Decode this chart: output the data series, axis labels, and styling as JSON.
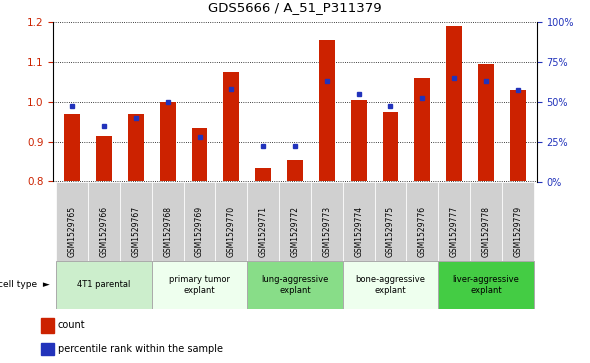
{
  "title": "GDS5666 / A_51_P311379",
  "samples": [
    "GSM1529765",
    "GSM1529766",
    "GSM1529767",
    "GSM1529768",
    "GSM1529769",
    "GSM1529770",
    "GSM1529771",
    "GSM1529772",
    "GSM1529773",
    "GSM1529774",
    "GSM1529775",
    "GSM1529776",
    "GSM1529777",
    "GSM1529778",
    "GSM1529779"
  ],
  "counts": [
    0.97,
    0.915,
    0.97,
    1.0,
    0.935,
    1.075,
    0.835,
    0.855,
    1.155,
    1.005,
    0.975,
    1.06,
    1.19,
    1.095,
    1.03
  ],
  "percentiles": [
    47,
    35,
    40,
    50,
    28,
    58,
    22,
    22,
    63,
    55,
    47,
    52,
    65,
    63,
    57
  ],
  "ylim": [
    0.8,
    1.2
  ],
  "yticks": [
    0.8,
    0.9,
    1.0,
    1.1,
    1.2
  ],
  "right_yticks": [
    0,
    25,
    50,
    75,
    100
  ],
  "bar_color": "#cc2200",
  "dot_color": "#2233bb",
  "cell_types": [
    {
      "label": "4T1 parental",
      "start": 0,
      "end": 3,
      "color": "#cceecc"
    },
    {
      "label": "primary tumor\nexplant",
      "start": 3,
      "end": 6,
      "color": "#eeffee"
    },
    {
      "label": "lung-aggressive\nexplant",
      "start": 6,
      "end": 9,
      "color": "#88dd88"
    },
    {
      "label": "bone-aggressive\nexplant",
      "start": 9,
      "end": 12,
      "color": "#eeffee"
    },
    {
      "label": "liver-aggressive\nexplant",
      "start": 12,
      "end": 15,
      "color": "#44cc44"
    }
  ],
  "bg_color": "#ffffff",
  "bar_width": 0.5
}
